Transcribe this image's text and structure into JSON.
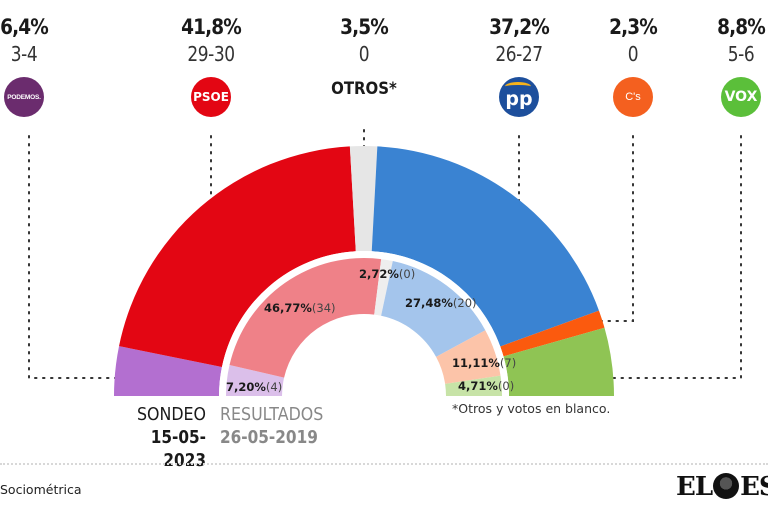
{
  "chart_data": {
    "type": "pie",
    "subtype": "double-semicircle-donut",
    "title": "",
    "outer_ring": {
      "name": "Sondeo 15-05-2023",
      "label_line1": "SONDEO",
      "label_line2": "15-05-2023",
      "slices": [
        {
          "party": "Podemos",
          "value": 6.4,
          "pct_label": "6,4%",
          "seats_label": "3-4",
          "color": "#b36fd0"
        },
        {
          "party": "PSOE",
          "value": 41.8,
          "pct_label": "41,8%",
          "seats_label": "29-30",
          "color": "#e30613"
        },
        {
          "party": "Otros",
          "value": 3.5,
          "pct_label": "3,5%",
          "seats_label": "0",
          "color": "#e6e6e6"
        },
        {
          "party": "PP",
          "value": 37.2,
          "pct_label": "37,2%",
          "seats_label": "26-27",
          "color": "#3a83d2"
        },
        {
          "party": "Cs",
          "value": 2.3,
          "pct_label": "2,3%",
          "seats_label": "0",
          "color": "#fb5a0e"
        },
        {
          "party": "Vox",
          "value": 8.8,
          "pct_label": "8,8%",
          "seats_label": "5-6",
          "color": "#8fc454"
        }
      ]
    },
    "inner_ring": {
      "name": "Resultados 26-05-2019",
      "label_line1": "RESULTADOS",
      "label_line2": "26-05-2019",
      "slices": [
        {
          "party": "Podemos",
          "value": 7.2,
          "pct_label": "7,20%",
          "seats_label": "(4)",
          "color": "#dbbfea"
        },
        {
          "party": "PSOE",
          "value": 46.77,
          "pct_label": "46,77%",
          "seats_label": "(34)",
          "color": "#ef8188"
        },
        {
          "party": "Otros",
          "value": 2.72,
          "pct_label": "2,72%",
          "seats_label": "(0)",
          "color": "#eeeeee"
        },
        {
          "party": "PP",
          "value": 27.48,
          "pct_label": "27,48%",
          "seats_label": "(20)",
          "color": "#a4c5ec"
        },
        {
          "party": "Cs",
          "value": 11.11,
          "pct_label": "11,11%",
          "seats_label": "(7)",
          "color": "#fcc4a9"
        },
        {
          "party": "Vox",
          "value": 4.71,
          "pct_label": "4,71%",
          "seats_label": "(0)",
          "color": "#c7e3a7"
        }
      ]
    }
  },
  "parties": [
    {
      "key": "podemos",
      "pct": "6,4%",
      "seats": "3-4",
      "logo_text": "PODEMOS.",
      "logo_color": "#6b2c6e"
    },
    {
      "key": "psoe",
      "pct": "41,8%",
      "seats": "29-30",
      "logo_text": "PSOE",
      "logo_color": "#e30613"
    },
    {
      "key": "otros",
      "pct": "3,5%",
      "seats": "0",
      "label": "OTROS*"
    },
    {
      "key": "pp",
      "pct": "37,2%",
      "seats": "26-27",
      "logo_text": "pp",
      "logo_color": "#1d4f9c"
    },
    {
      "key": "cs",
      "pct": "2,3%",
      "seats": "0",
      "logo_text": "C's",
      "logo_color": "#f4601f"
    },
    {
      "key": "vox",
      "pct": "8,8%",
      "seats": "5-6",
      "logo_text": "VOX",
      "logo_color": "#5bbf3a"
    }
  ],
  "footnote": "*Otros y votos en blanco.",
  "source": "Sociométrica",
  "brand": {
    "left": "EL",
    "right": "ESP"
  }
}
